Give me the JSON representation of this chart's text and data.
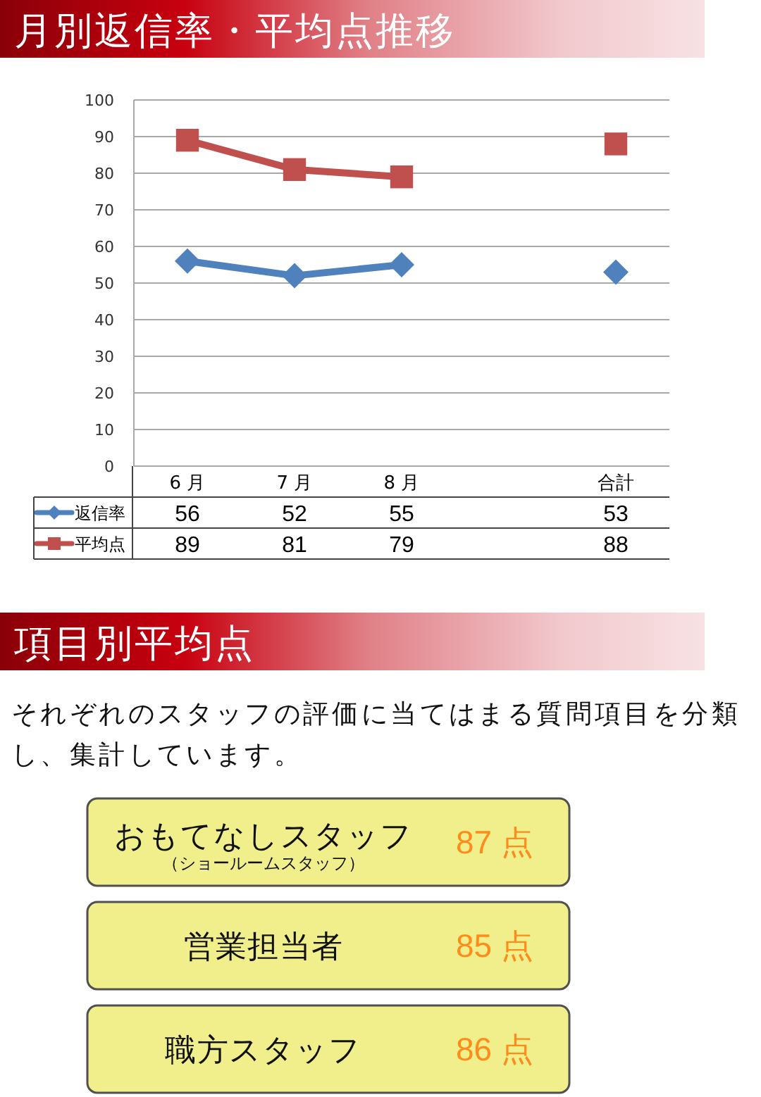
{
  "chart_data": [
    {
      "type": "line",
      "title": "月別返信率・平均点推移",
      "categories": [
        "6 月",
        "7 月",
        "8 月",
        null,
        "合計"
      ],
      "series": [
        {
          "name": "返信率",
          "color": "#4f81bd",
          "marker": "diamond",
          "values": [
            56,
            52,
            55,
            null,
            53
          ]
        },
        {
          "name": "平均点",
          "color": "#c0504d",
          "marker": "square",
          "values": [
            89,
            81,
            79,
            null,
            88
          ]
        }
      ],
      "ylim": [
        0,
        100
      ],
      "yticks": [
        0,
        10,
        20,
        30,
        40,
        50,
        60,
        70,
        80,
        90,
        100
      ],
      "grid": "y",
      "legend": "bottom",
      "data_labels": true
    },
    {
      "type": "other",
      "title": "項目別平均点",
      "subtitle": "それぞれのスタッフの評価に当てはまる質問項目を分類し、集計しています。",
      "categories": [
        "おもてなしスタッフ（ショールームスタッフ）",
        "営業担当者",
        "職方スタッフ"
      ],
      "values": [
        87,
        85,
        86
      ],
      "value_labels": [
        "87 点",
        "85 点",
        "86 点"
      ],
      "colors": [
        "#f0ef8c",
        "#f0ef8c",
        "#f0ef8c"
      ]
    }
  ]
}
